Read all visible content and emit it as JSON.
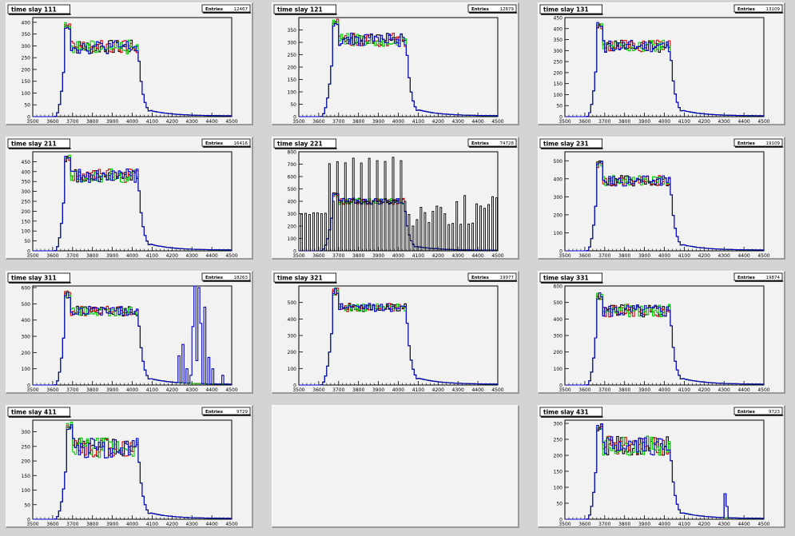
{
  "x_axis": {
    "min": 3500,
    "max": 4500,
    "ticks": [
      3500,
      3600,
      3700,
      3800,
      3900,
      4000,
      4100,
      4200,
      4300,
      4400,
      4500
    ]
  },
  "series_colors": {
    "black": "#000000",
    "red": "#e00000",
    "green": "#00d000",
    "blue": "#0000d0"
  },
  "stats_label": "Entries",
  "chart_data": [
    {
      "type": "histogram",
      "title": "time slay 111",
      "entries": "12467",
      "ylim": [
        0,
        420
      ],
      "yticks": [
        0,
        50,
        100,
        150,
        200,
        250,
        300,
        350,
        400
      ],
      "plateau": [
        3660,
        4030
      ],
      "level": 295,
      "jitter": 30,
      "peak": 400,
      "tail": 1,
      "noise": []
    },
    {
      "type": "histogram",
      "title": "time slay 121",
      "entries": "12879",
      "ylim": [
        0,
        400
      ],
      "yticks": [
        0,
        50,
        100,
        150,
        200,
        250,
        300,
        350
      ],
      "plateau": [
        3670,
        4040
      ],
      "level": 310,
      "jitter": 28,
      "peak": 395,
      "tail": 1,
      "noise": []
    },
    {
      "type": "histogram",
      "title": "time slay 131",
      "entries": "13109",
      "ylim": [
        0,
        450
      ],
      "yticks": [
        0,
        50,
        100,
        150,
        200,
        250,
        300,
        350,
        400,
        450
      ],
      "plateau": [
        3660,
        4030
      ],
      "level": 320,
      "jitter": 28,
      "peak": 430,
      "tail": 1,
      "noise": []
    },
    {
      "type": "histogram",
      "title": "time slay 211",
      "entries": "16416",
      "ylim": [
        0,
        500
      ],
      "yticks": [
        0,
        50,
        100,
        150,
        200,
        250,
        300,
        350,
        400,
        450
      ],
      "plateau": [
        3660,
        4030
      ],
      "level": 380,
      "jitter": 35,
      "peak": 485,
      "tail": 1,
      "noise": []
    },
    {
      "type": "histogram",
      "title": "time slay 221",
      "entries": "74728",
      "ylim": [
        0,
        800
      ],
      "yticks": [
        0,
        100,
        200,
        300,
        400,
        500,
        600,
        700,
        800
      ],
      "plateau": [
        3670,
        4030
      ],
      "level": 400,
      "jitter": 25,
      "peak": 470,
      "tail": 1,
      "noise": [],
      "spikes": true
    },
    {
      "type": "histogram",
      "title": "time slay 231",
      "entries": "19109",
      "ylim": [
        0,
        550
      ],
      "yticks": [
        0,
        100,
        200,
        300,
        400,
        500
      ],
      "plateau": [
        3660,
        4030
      ],
      "level": 390,
      "jitter": 30,
      "peak": 500,
      "tail": 1,
      "noise": []
    },
    {
      "type": "histogram",
      "title": "time slay 311",
      "entries": "18263",
      "ylim": [
        0,
        610
      ],
      "yticks": [
        0,
        100,
        200,
        300,
        400,
        500,
        600
      ],
      "plateau": [
        3660,
        4030
      ],
      "level": 455,
      "jitter": 30,
      "peak": 580,
      "tail": 1,
      "noise": [
        [
          4230,
          180
        ],
        [
          4250,
          250
        ],
        [
          4270,
          100
        ],
        [
          4290,
          60
        ],
        [
          4300,
          360
        ],
        [
          4310,
          610
        ],
        [
          4320,
          150
        ],
        [
          4330,
          600
        ],
        [
          4340,
          380
        ],
        [
          4360,
          480
        ],
        [
          4380,
          170
        ],
        [
          4400,
          100
        ],
        [
          4450,
          60
        ]
      ]
    },
    {
      "type": "histogram",
      "title": "time slay 321",
      "entries": "19977",
      "ylim": [
        0,
        600
      ],
      "yticks": [
        0,
        100,
        200,
        300,
        400,
        500
      ],
      "plateau": [
        3670,
        4040
      ],
      "level": 470,
      "jitter": 25,
      "peak": 590,
      "tail": 1,
      "noise": []
    },
    {
      "type": "histogram",
      "title": "time slay 331",
      "entries": "19874",
      "ylim": [
        0,
        600
      ],
      "yticks": [
        0,
        100,
        200,
        300,
        400,
        500,
        600
      ],
      "plateau": [
        3660,
        4030
      ],
      "level": 450,
      "jitter": 40,
      "peak": 560,
      "tail": 1,
      "noise": []
    },
    {
      "type": "histogram",
      "title": "time slay 411",
      "entries": "9729",
      "ylim": [
        0,
        340
      ],
      "yticks": [
        0,
        50,
        100,
        150,
        200,
        250,
        300
      ],
      "plateau": [
        3670,
        4030
      ],
      "level": 245,
      "jitter": 35,
      "peak": 335,
      "tail": 1,
      "noise": []
    },
    null,
    {
      "type": "histogram",
      "title": "time slay 431",
      "entries": "9723",
      "ylim": [
        0,
        310
      ],
      "yticks": [
        0,
        50,
        100,
        150,
        200,
        250,
        300
      ],
      "plateau": [
        3660,
        4030
      ],
      "level": 230,
      "jitter": 30,
      "peak": 300,
      "tail": 1,
      "noise": [
        [
          4300,
          80
        ],
        [
          4310,
          40
        ]
      ]
    }
  ]
}
